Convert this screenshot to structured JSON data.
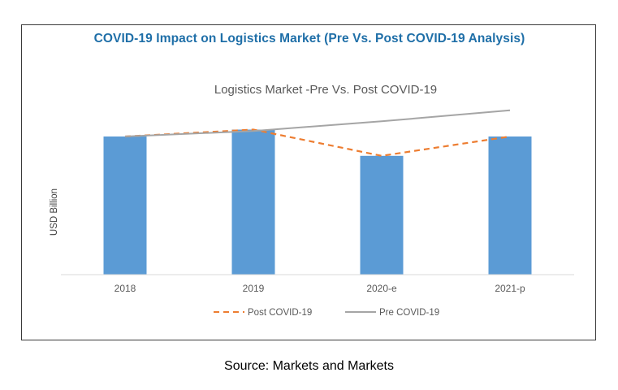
{
  "heading": "COVID-19 Impact on Logistics Market (Pre Vs. Post COVID-19 Analysis)",
  "source": "Source: Markets and Markets",
  "colors": {
    "bar": "#5b9bd5",
    "post": "#ed7d31",
    "pre": "#a5a5a5",
    "heading": "#1f6fa8"
  },
  "chart_data": {
    "type": "bar",
    "title": "Logistics Market -Pre Vs. Post COVID-19",
    "xlabel": "",
    "ylabel": "USD Billion",
    "categories": [
      "2018",
      "2019",
      "2020-e",
      "2021-p"
    ],
    "values": [
      100,
      105,
      86,
      100
    ],
    "ylim": [
      0,
      120
    ],
    "grid": false,
    "legend_position": "bottom",
    "series": [
      {
        "name": "Post COVID-19",
        "type": "line",
        "style": "dashed",
        "values": [
          100,
          105,
          86,
          100
        ]
      },
      {
        "name": "Pre COVID-19",
        "type": "line",
        "style": "solid",
        "values": [
          100,
          104,
          111,
          119
        ]
      }
    ]
  }
}
